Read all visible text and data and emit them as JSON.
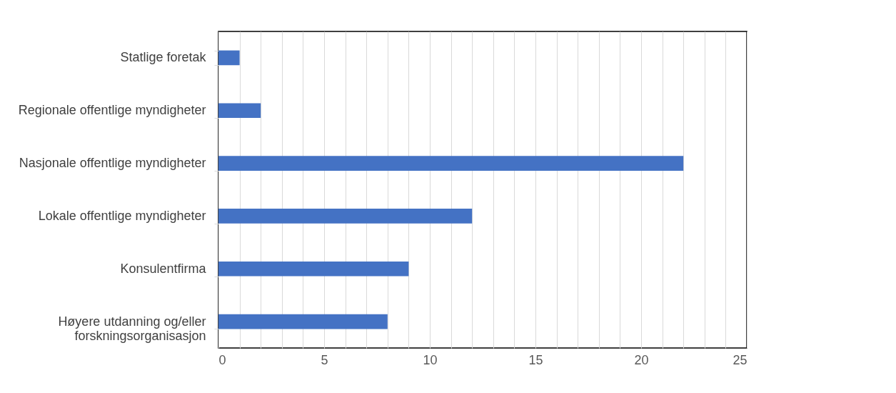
{
  "chart_data": {
    "type": "bar",
    "orientation": "horizontal",
    "categories": [
      "Statlige foretak",
      "Regionale offentlige myndigheter",
      "Nasjonale offentlige myndigheter",
      "Lokale offentlige myndigheter",
      "Konsulentfirma",
      "Høyere utdanning og/eller\nforskningsorganisasjon"
    ],
    "values": [
      1,
      2,
      22,
      12,
      9,
      8
    ],
    "color": "#4472c4",
    "xlim": [
      0,
      25
    ],
    "xticks": [
      0,
      {
        "value": 1,
        "label": null
      },
      {
        "value": 2,
        "label": null
      },
      {
        "value": 3,
        "label": null
      },
      {
        "value": 4,
        "label": null
      },
      5,
      {
        "value": 6,
        "label": null
      },
      {
        "value": 7,
        "label": null
      },
      {
        "value": 8,
        "label": null
      },
      {
        "value": 9,
        "label": null
      },
      10,
      {
        "value": 11,
        "label": null
      },
      {
        "value": 12,
        "label": null
      },
      {
        "value": 13,
        "label": null
      },
      {
        "value": 14,
        "label": null
      },
      15,
      {
        "value": 16,
        "label": null
      },
      {
        "value": 17,
        "label": null
      },
      {
        "value": 18,
        "label": null
      },
      {
        "value": 19,
        "label": null
      },
      20,
      {
        "value": 21,
        "label": null
      },
      {
        "value": 22,
        "label": null
      },
      {
        "value": 23,
        "label": null
      },
      {
        "value": 24,
        "label": null
      },
      25
    ],
    "grid": "x"
  }
}
